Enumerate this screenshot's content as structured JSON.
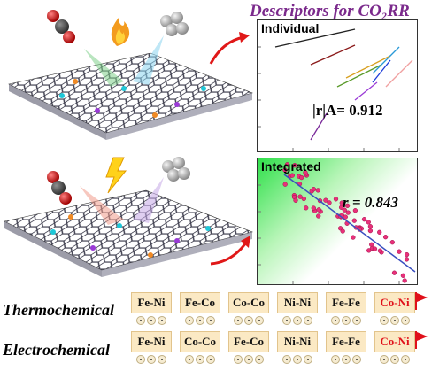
{
  "header": {
    "title": "Descriptors for CO₂RR"
  },
  "panels": {
    "individual": {
      "label": "Individual",
      "stat": "|r|A= 0.912"
    },
    "integrated": {
      "label": "Integrated",
      "stat": "r = 0.843"
    }
  },
  "sequences": {
    "thermochemical": {
      "label": "Thermochemical",
      "pairs": [
        "Fe-Ni",
        "Fe-Co",
        "Co-Co",
        "Ni-Ni",
        "Fe-Fe",
        "Co-Ni"
      ]
    },
    "electrochemical": {
      "label": "Electrochemical",
      "pairs": [
        "Fe-Ni",
        "Co-Co",
        "Fe-Co",
        "Ni-Ni",
        "Fe-Fe",
        "Co-Ni"
      ]
    }
  },
  "icons": [
    "co2-molecule-icon",
    "flame-icon",
    "lightning-icon",
    "h2-molecule-icon",
    "catalyst-sheet-icon",
    "curved-arrow-icon",
    "flag-icon"
  ],
  "colors": {
    "title": "#7b2a8c",
    "highlight": "#e0101a",
    "scatter_integrated": "#e8307a",
    "fit_line": "#3a4fc0",
    "pair_box": "#fbe9c4"
  }
}
